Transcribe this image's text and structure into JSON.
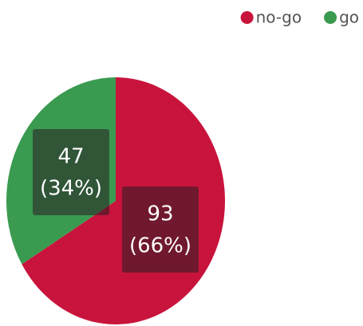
{
  "chart_data": {
    "type": "pie",
    "categories": [
      "no-go",
      "go"
    ],
    "values": [
      93,
      47
    ],
    "percent_labels": [
      "(66%)",
      "(34%)"
    ],
    "colors": [
      "#c8143c",
      "#3a9a50"
    ],
    "legend": "top-right"
  }
}
